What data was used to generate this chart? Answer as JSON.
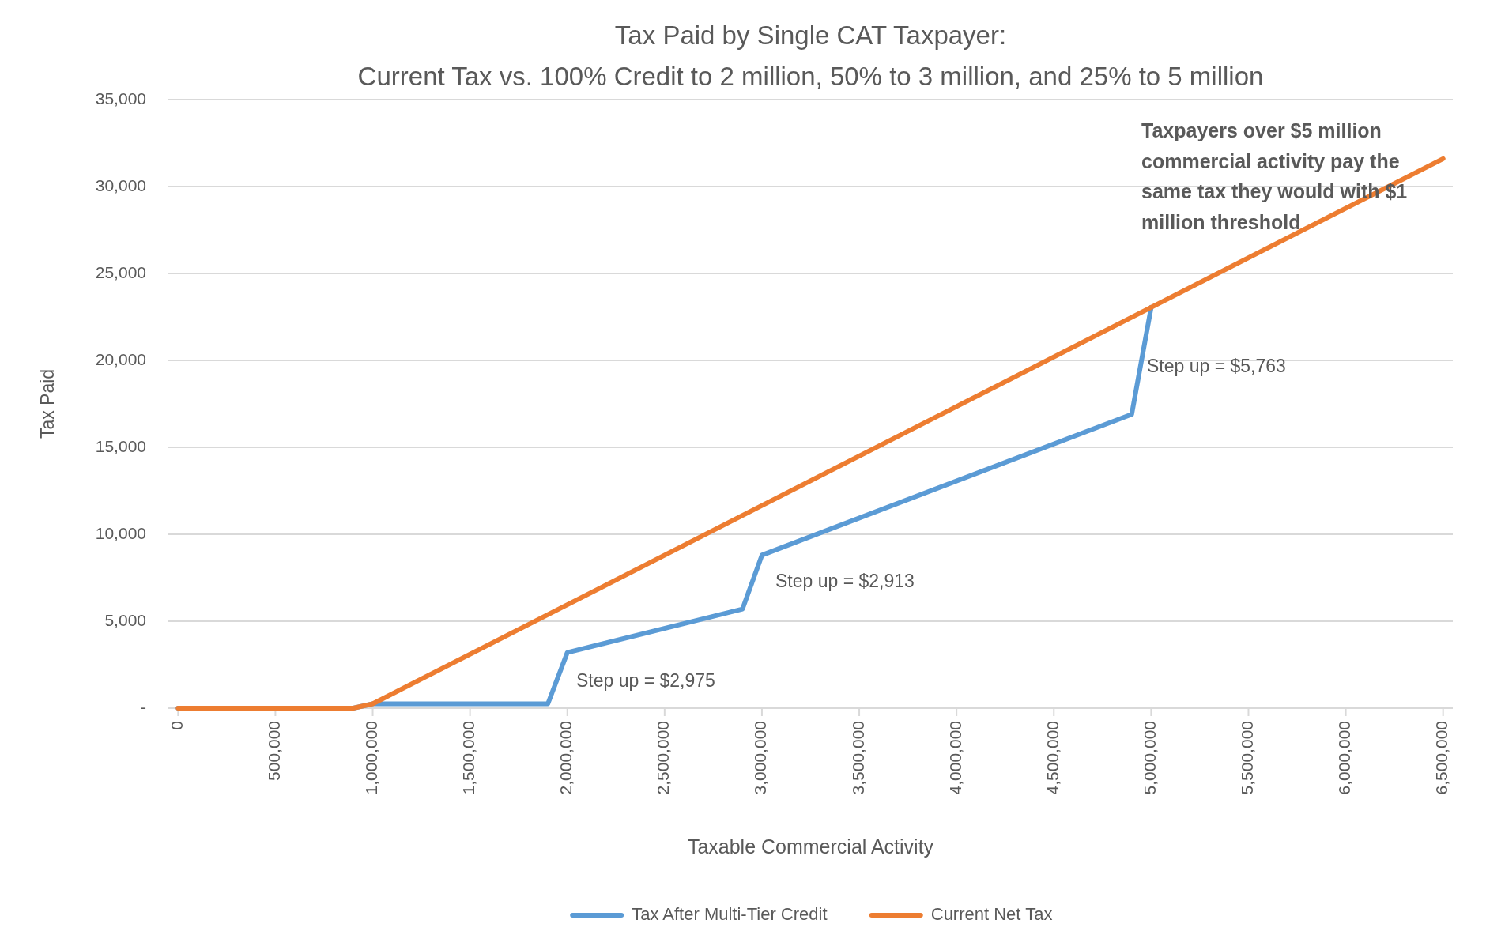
{
  "chart_data": {
    "type": "line",
    "title": "Tax Paid by Single CAT Taxpayer:",
    "subtitle": "Current Tax vs. 100% Credit to 2 million, 50% to 3 million, and 25% to 5 million",
    "xlabel": "Taxable Commercial Activity",
    "ylabel": "Tax Paid",
    "series": [
      {
        "name": "Tax After Multi-Tier Credit",
        "color": "#5b9bd5",
        "x": [
          0,
          900000,
          1000000,
          1900000,
          2000000,
          2900000,
          3000000,
          4900000,
          5000000
        ],
        "values": [
          0,
          0,
          250,
          250,
          3200,
          5700,
          8800,
          16900,
          23050
        ]
      },
      {
        "name": "Current Net Tax",
        "color": "#ed7d31",
        "x": [
          0,
          900000,
          1000000,
          2000000,
          3000000,
          4000000,
          5000000,
          6500000
        ],
        "values": [
          0,
          0,
          250,
          5950,
          11650,
          17350,
          23050,
          31600
        ]
      }
    ],
    "xlim": [
      -50000,
      6550000
    ],
    "xticks": [
      0,
      {
        "value": 500000,
        "label": "500,000"
      },
      {
        "value": 1000000,
        "label": "1,000,000"
      },
      {
        "value": 1500000,
        "label": "1,500,000"
      },
      {
        "value": 2000000,
        "label": "2,000,000"
      },
      {
        "value": 2500000,
        "label": "2,500,000"
      },
      {
        "value": 3000000,
        "label": "3,000,000"
      },
      {
        "value": 3500000,
        "label": "3,500,000"
      },
      {
        "value": 4000000,
        "label": "4,000,000"
      },
      {
        "value": 4500000,
        "label": "4,500,000"
      },
      {
        "value": 5000000,
        "label": "5,000,000"
      },
      {
        "value": 5500000,
        "label": "5,500,000"
      },
      {
        "value": 6000000,
        "label": "6,000,000"
      },
      {
        "value": 6500000,
        "label": "6,500,000"
      }
    ],
    "ylim": [
      0,
      35000
    ],
    "yticks": [
      {
        "value": 0,
        "label": "-"
      },
      {
        "value": 5000,
        "label": "5,000"
      },
      {
        "value": 10000,
        "label": "10,000"
      },
      {
        "value": 15000,
        "label": "15,000"
      },
      {
        "value": 20000,
        "label": "20,000"
      },
      {
        "value": 25000,
        "label": "25,000"
      },
      {
        "value": 30000,
        "label": "30,000"
      },
      {
        "value": 35000,
        "label": "35,000"
      }
    ],
    "grid": "y",
    "legend": "bottom",
    "marker": "none",
    "line_style": "solid",
    "annotations": [
      "Step up = $2,975",
      "Step up = $2,913",
      "Step up = $5,763",
      "Taxpayers over $5 million commercial activity pay the same tax they would with $1 million threshold"
    ]
  }
}
